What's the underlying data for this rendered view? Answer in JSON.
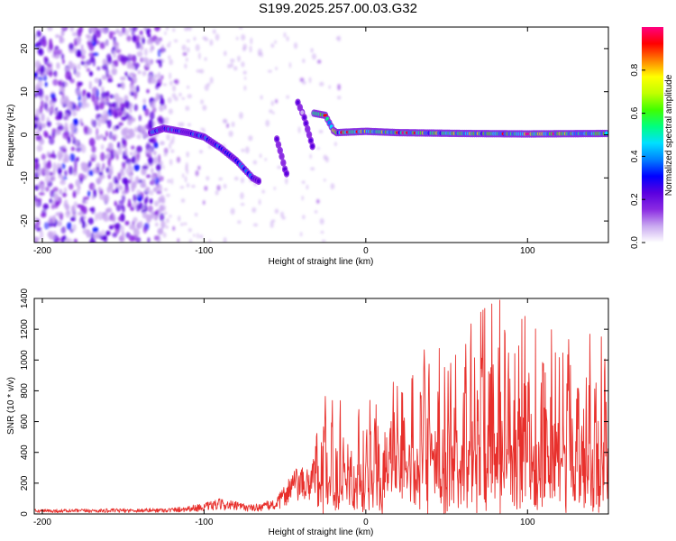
{
  "title": "S199.2025.257.00.03.G32",
  "chart_data": [
    {
      "type": "heatmap",
      "name": "spectrogram",
      "xlabel": "Height of straight line (km)",
      "ylabel": "Frequency (Hz)",
      "xlim": [
        -205,
        150
      ],
      "ylim": [
        -25,
        25
      ],
      "xticks": [
        -200,
        -100,
        0,
        100
      ],
      "yticks": [
        -20,
        -10,
        0,
        10,
        20
      ],
      "colorbar": {
        "label": "Normalized spectral amplitude",
        "range": [
          0,
          1
        ],
        "ticks": [
          "0.0",
          "0.2",
          "0.4",
          "0.6",
          "0.8"
        ],
        "colors": [
          "#ffffff",
          "#c9a8f0",
          "#8a2be2",
          "#5a00e0",
          "#0000ff",
          "#0080ff",
          "#00e0ff",
          "#00ff80",
          "#40ff00",
          "#c0ff00",
          "#ffff00",
          "#ff8000",
          "#ff0000",
          "#ff0080"
        ]
      },
      "features": [
        {
          "name": "noise-region",
          "x_range": [
            -205,
            -125
          ],
          "y_range": [
            -25,
            25
          ],
          "amplitude": 0.2
        },
        {
          "name": "signal-segment",
          "points": [
            [
              -133,
              0.5
            ],
            [
              -125,
              1.5
            ],
            [
              -110,
              0.5
            ],
            [
              -100,
              -0.5
            ],
            [
              -90,
              -3
            ],
            [
              -80,
              -6
            ],
            [
              -75,
              -8
            ],
            [
              -70,
              -10
            ],
            [
              -65,
              -11
            ]
          ],
          "amplitude": 0.35
        },
        {
          "name": "signal-segment",
          "points": [
            [
              -55,
              -1
            ],
            [
              -52,
              -5
            ],
            [
              -50,
              -8
            ],
            [
              -48,
              -10
            ]
          ],
          "amplitude": 0.2
        },
        {
          "name": "signal-segment",
          "points": [
            [
              -42,
              7.5
            ],
            [
              -38,
              4
            ],
            [
              -35,
              0
            ],
            [
              -32,
              -4
            ]
          ],
          "amplitude": 0.2
        },
        {
          "name": "signal-segment",
          "points": [
            [
              -32,
              5
            ],
            [
              -25,
              4.5
            ],
            [
              -20,
              1
            ],
            [
              -18,
              0.5
            ],
            [
              0,
              0.8
            ],
            [
              20,
              0.5
            ],
            [
              60,
              0.3
            ],
            [
              100,
              0.2
            ],
            [
              150,
              0.3
            ]
          ],
          "amplitude": 0.6
        }
      ]
    },
    {
      "type": "line",
      "name": "snr",
      "xlabel": "Height of straight line (km)",
      "ylabel": "SNR (10 * v/v)",
      "xlim": [
        -205,
        150
      ],
      "ylim": [
        0,
        1400
      ],
      "xticks": [
        -200,
        -100,
        0,
        100
      ],
      "yticks": [
        0,
        200,
        400,
        600,
        800,
        1000,
        1200,
        1400
      ],
      "color": "#e8302c",
      "envelope": [
        {
          "x": -205,
          "y": 30
        },
        {
          "x": -150,
          "y": 35
        },
        {
          "x": -120,
          "y": 40
        },
        {
          "x": -100,
          "y": 70
        },
        {
          "x": -90,
          "y": 100
        },
        {
          "x": -80,
          "y": 80
        },
        {
          "x": -70,
          "y": 60
        },
        {
          "x": -55,
          "y": 100
        },
        {
          "x": -45,
          "y": 300
        },
        {
          "x": -35,
          "y": 300
        },
        {
          "x": -27,
          "y": 750
        },
        {
          "x": -20,
          "y": 800
        },
        {
          "x": -10,
          "y": 650
        },
        {
          "x": 0,
          "y": 700
        },
        {
          "x": 10,
          "y": 850
        },
        {
          "x": 20,
          "y": 950
        },
        {
          "x": 28,
          "y": 1050
        },
        {
          "x": 40,
          "y": 1200
        },
        {
          "x": 55,
          "y": 1150
        },
        {
          "x": 65,
          "y": 1250
        },
        {
          "x": 75,
          "y": 1350
        },
        {
          "x": 85,
          "y": 1400
        },
        {
          "x": 95,
          "y": 1250
        },
        {
          "x": 105,
          "y": 1350
        },
        {
          "x": 115,
          "y": 1250
        },
        {
          "x": 125,
          "y": 1250
        },
        {
          "x": 140,
          "y": 1280
        },
        {
          "x": 150,
          "y": 1050
        }
      ]
    }
  ]
}
